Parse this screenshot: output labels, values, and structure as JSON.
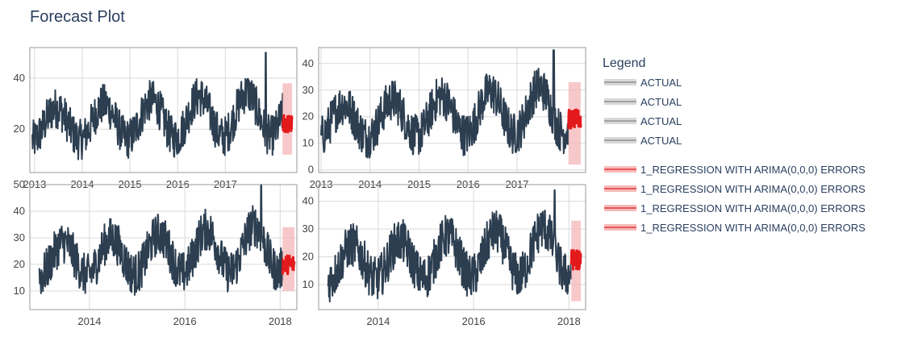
{
  "title": "Forecast Plot",
  "legend": {
    "title": "Legend",
    "items": [
      {
        "label": "ACTUAL",
        "color": "#7f7f7f"
      },
      {
        "label": "ACTUAL",
        "color": "#7f7f7f"
      },
      {
        "label": "ACTUAL",
        "color": "#7f7f7f"
      },
      {
        "label": "ACTUAL",
        "color": "#7f7f7f"
      },
      {
        "label": "1_REGRESSION WITH ARIMA(0,0,0) ERRORS",
        "color": "#e31a1c"
      },
      {
        "label": "1_REGRESSION WITH ARIMA(0,0,0) ERRORS",
        "color": "#e31a1c"
      },
      {
        "label": "1_REGRESSION WITH ARIMA(0,0,0) ERRORS",
        "color": "#e31a1c"
      },
      {
        "label": "1_REGRESSION WITH ARIMA(0,0,0) ERRORS",
        "color": "#e31a1c"
      }
    ]
  },
  "colors": {
    "actual": "#2c3e50",
    "forecast": "#e31a1c",
    "interval": "#f4b6b8",
    "grid": "#d9d9d9",
    "frame": "#999999"
  },
  "chart_data": [
    {
      "type": "line",
      "xlim": [
        2012.9,
        2018.5
      ],
      "ylim": [
        3,
        52
      ],
      "xticks": [
        2013,
        2014,
        2015,
        2016,
        2017
      ],
      "xtick_labels": [
        "2013",
        "2014",
        "2015",
        "2016",
        "2017"
      ],
      "yticks": [
        20,
        40
      ],
      "ytick_labels": [
        "20",
        "40"
      ],
      "actual": {
        "start": 2012.95,
        "end": 2018.2,
        "min": 5,
        "max": 50,
        "peak_at": 2017.85,
        "peak": 50
      },
      "forecast": {
        "start": 2018.2,
        "end": 2018.4,
        "mean": 22,
        "low": 10,
        "high": 38
      }
    },
    {
      "type": "line",
      "xlim": [
        2012.95,
        2018.4
      ],
      "ylim": [
        -1,
        46
      ],
      "xticks": [
        2013,
        2014,
        2015,
        2016,
        2017
      ],
      "xtick_labels": [
        "2013",
        "2014",
        "2015",
        "2016",
        "2017"
      ],
      "yticks": [
        0,
        10,
        20,
        30,
        40
      ],
      "ytick_labels": [
        "0",
        "10",
        "20",
        "30",
        "40"
      ],
      "actual": {
        "start": 2013.0,
        "end": 2018.05,
        "min": 3,
        "max": 45,
        "peak_at": 2017.75,
        "peak": 45
      },
      "forecast": {
        "start": 2018.05,
        "end": 2018.3,
        "mean": 19,
        "low": 2,
        "high": 33
      }
    },
    {
      "type": "line",
      "xlim": [
        2012.75,
        2018.35
      ],
      "ylim": [
        3,
        50
      ],
      "xticks": [
        2014,
        2016,
        2018
      ],
      "xtick_labels": [
        "2014",
        "2016",
        "2018"
      ],
      "yticks": [
        10,
        20,
        30,
        40,
        50
      ],
      "ytick_labels": [
        "10",
        "20",
        "30",
        "40",
        "50"
      ],
      "actual": {
        "start": 2012.95,
        "end": 2018.05,
        "min": 5,
        "max": 50,
        "peak_at": 2017.6,
        "peak": 50
      },
      "forecast": {
        "start": 2018.05,
        "end": 2018.3,
        "mean": 20,
        "low": 10,
        "high": 34
      }
    },
    {
      "type": "line",
      "xlim": [
        2012.75,
        2018.35
      ],
      "ylim": [
        1,
        46
      ],
      "xticks": [
        2014,
        2016,
        2018
      ],
      "xtick_labels": [
        "2014",
        "2016",
        "2018"
      ],
      "yticks": [
        10,
        20,
        30,
        40
      ],
      "ytick_labels": [
        "10",
        "20",
        "30",
        "40"
      ],
      "actual": {
        "start": 2012.95,
        "end": 2018.05,
        "min": 3,
        "max": 44,
        "peak_at": 2017.7,
        "peak": 44
      },
      "forecast": {
        "start": 2018.05,
        "end": 2018.25,
        "mean": 19,
        "low": 4,
        "high": 33
      }
    }
  ]
}
